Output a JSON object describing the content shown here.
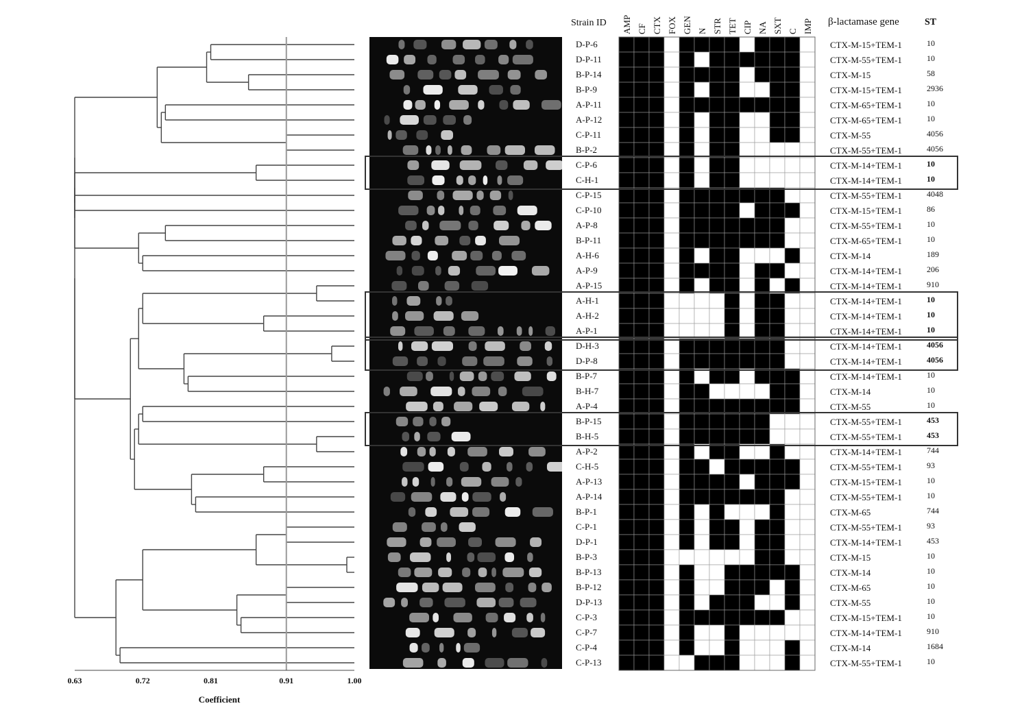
{
  "headers": {
    "strain": "Strain ID",
    "antibiotics": [
      "AMP",
      "CF",
      "CTX",
      "FOX",
      "GEN",
      "N",
      "STR",
      "TET",
      "CIP",
      "NA",
      "SXT",
      "C",
      "IMP"
    ],
    "gene": "β-lactamase gene",
    "st": "ST"
  },
  "axis": {
    "title": "Coefficient",
    "ticks": [
      "0.63",
      "0.72",
      "0.81",
      "0.91",
      "1.00"
    ],
    "tick_values": [
      0.63,
      0.72,
      0.81,
      0.91,
      1.0
    ],
    "range": [
      0.63,
      1.0
    ],
    "cutoff": 0.91
  },
  "strains": [
    {
      "id": "D-P-6",
      "res": "1110111101110",
      "gene": "CTX-M-15+TEM-1",
      "st": "10",
      "bold": false
    },
    {
      "id": "D-P-11",
      "res": "1110101111110",
      "gene": "CTX-M-55+TEM-1",
      "st": "10",
      "bold": false
    },
    {
      "id": "B-P-14",
      "res": "1110111101110",
      "gene": "CTX-M-15",
      "st": "58",
      "bold": false
    },
    {
      "id": "B-P-9",
      "res": "1110101100110",
      "gene": "CTX-M-15+TEM-1",
      "st": "2936",
      "bold": false
    },
    {
      "id": "A-P-11",
      "res": "1110111111110",
      "gene": "CTX-M-65+TEM-1",
      "st": "10",
      "bold": false
    },
    {
      "id": "A-P-12",
      "res": "1110101100110",
      "gene": "CTX-M-65+TEM-1",
      "st": "10",
      "bold": false
    },
    {
      "id": "C-P-11",
      "res": "1110101100110",
      "gene": "CTX-M-55",
      "st": "4056",
      "bold": false
    },
    {
      "id": "B-P-2",
      "res": "1110101100000",
      "gene": "CTX-M-55+TEM-1",
      "st": "4056",
      "bold": false
    },
    {
      "id": "C-P-6",
      "res": "1110101100000",
      "gene": "CTX-M-14+TEM-1",
      "st": "10",
      "bold": true
    },
    {
      "id": "C-H-1",
      "res": "1110101100000",
      "gene": "CTX-M-14+TEM-1",
      "st": "10",
      "bold": true
    },
    {
      "id": "C-P-15",
      "res": "1110111111100",
      "gene": "CTX-M-55+TEM-1",
      "st": "4048",
      "bold": false
    },
    {
      "id": "C-P-10",
      "res": "1110111101110",
      "gene": "CTX-M-15+TEM-1",
      "st": "86",
      "bold": false
    },
    {
      "id": "A-P-8",
      "res": "1110111111100",
      "gene": "CTX-M-55+TEM-1",
      "st": "10",
      "bold": false
    },
    {
      "id": "B-P-11",
      "res": "1110111111100",
      "gene": "CTX-M-65+TEM-1",
      "st": "10",
      "bold": false
    },
    {
      "id": "A-H-6",
      "res": "1110101100010",
      "gene": "CTX-M-14",
      "st": "189",
      "bold": false
    },
    {
      "id": "A-P-9",
      "res": "1110111101100",
      "gene": "CTX-M-14+TEM-1",
      "st": "206",
      "bold": false
    },
    {
      "id": "A-P-15",
      "res": "1110101101010",
      "gene": "CTX-M-14+TEM-1",
      "st": "910",
      "bold": false
    },
    {
      "id": "A-H-1",
      "res": "1110000101100",
      "gene": "CTX-M-14+TEM-1",
      "st": "10",
      "bold": true
    },
    {
      "id": "A-H-2",
      "res": "1110000101100",
      "gene": "CTX-M-14+TEM-1",
      "st": "10",
      "bold": true
    },
    {
      "id": "A-P-1",
      "res": "1110000101100",
      "gene": "CTX-M-14+TEM-1",
      "st": "10",
      "bold": true
    },
    {
      "id": "D-H-3",
      "res": "1110111111100",
      "gene": "CTX-M-14+TEM-1",
      "st": "4056",
      "bold": true
    },
    {
      "id": "D-P-8",
      "res": "1110111111100",
      "gene": "CTX-M-14+TEM-1",
      "st": "4056",
      "bold": true
    },
    {
      "id": "B-P-7",
      "res": "1110101101110",
      "gene": "CTX-M-14+TEM-1",
      "st": "10",
      "bold": false
    },
    {
      "id": "B-H-7",
      "res": "1110110000110",
      "gene": "CTX-M-14",
      "st": "10",
      "bold": false
    },
    {
      "id": "A-P-4",
      "res": "1110111111110",
      "gene": "CTX-M-55",
      "st": "10",
      "bold": false
    },
    {
      "id": "B-P-15",
      "res": "1110111111000",
      "gene": "CTX-M-55+TEM-1",
      "st": "453",
      "bold": true
    },
    {
      "id": "B-H-5",
      "res": "1110111111000",
      "gene": "CTX-M-55+TEM-1",
      "st": "453",
      "bold": true
    },
    {
      "id": "A-P-2",
      "res": "1110101100100",
      "gene": "CTX-M-14+TEM-1",
      "st": "744",
      "bold": false
    },
    {
      "id": "C-H-5",
      "res": "1110110111110",
      "gene": "CTX-M-55+TEM-1",
      "st": "93",
      "bold": false
    },
    {
      "id": "A-P-13",
      "res": "1110111101110",
      "gene": "CTX-M-15+TEM-1",
      "st": "10",
      "bold": false
    },
    {
      "id": "A-P-14",
      "res": "1110111111100",
      "gene": "CTX-M-55+TEM-1",
      "st": "10",
      "bold": false
    },
    {
      "id": "B-P-1",
      "res": "1110101000100",
      "gene": "CTX-M-65",
      "st": "744",
      "bold": false
    },
    {
      "id": "C-P-1",
      "res": "1110101101100",
      "gene": "CTX-M-55+TEM-1",
      "st": "93",
      "bold": false
    },
    {
      "id": "D-P-1",
      "res": "1110101101100",
      "gene": "CTX-M-14+TEM-1",
      "st": "453",
      "bold": false
    },
    {
      "id": "B-P-3",
      "res": "1110000001100",
      "gene": "CTX-M-15",
      "st": "10",
      "bold": false
    },
    {
      "id": "B-P-13",
      "res": "1110100111110",
      "gene": "CTX-M-14",
      "st": "10",
      "bold": false
    },
    {
      "id": "B-P-12",
      "res": "1110100111010",
      "gene": "CTX-M-65",
      "st": "10",
      "bold": false
    },
    {
      "id": "D-P-13",
      "res": "1110101110010",
      "gene": "CTX-M-55",
      "st": "10",
      "bold": false
    },
    {
      "id": "C-P-3",
      "res": "1110111111100",
      "gene": "CTX-M-15+TEM-1",
      "st": "10",
      "bold": false
    },
    {
      "id": "C-P-7",
      "res": "1110100100000",
      "gene": "CTX-M-14+TEM-1",
      "st": "910",
      "bold": false
    },
    {
      "id": "C-P-4",
      "res": "1110100100010",
      "gene": "CTX-M-14",
      "st": "1684",
      "bold": false
    },
    {
      "id": "C-P-13",
      "res": "1110011100010",
      "gene": "CTX-M-55+TEM-1",
      "st": "10",
      "bold": false
    }
  ],
  "dendrogram": [
    [
      0.81,
      0.84
    ],
    [
      0.86,
      0.82
    ],
    [
      0.75,
      0.79
    ],
    [
      0.91,
      0.74
    ],
    [
      0.87,
      0.92
    ],
    [
      0.63,
      0.7
    ],
    [
      0.75,
      0.66
    ],
    [
      0.72,
      0.75
    ],
    [
      0.95,
      0.97
    ],
    [
      0.88,
      0.81
    ],
    [
      0.97,
      0.93
    ],
    [
      0.78,
      0.8
    ],
    [
      0.72,
      0.82
    ],
    [
      0.95,
      0.99
    ],
    [
      0.88,
      0.84
    ],
    [
      0.79,
      0.87
    ],
    [
      0.91,
      0.93
    ],
    [
      0.99,
      0.98
    ],
    [
      0.91,
      0.96
    ],
    [
      0.85,
      0.77
    ],
    [
      0.69,
      0.71
    ],
    [
      0.64,
      0.98
    ],
    [
      0.78,
      0.95
    ],
    [
      0.98,
      0.76
    ],
    [
      0.94,
      0.8
    ],
    [
      0.86,
      0.72
    ],
    [
      0.92,
      0.99
    ],
    [
      0.97,
      0.84
    ],
    [
      0.87,
      0.88
    ],
    [
      0.85,
      0.87
    ],
    [
      0.95,
      0.85
    ],
    [
      0.83,
      0.97
    ],
    [
      0.89,
      0.97
    ],
    [
      0.99,
      0.74
    ],
    [
      0.81,
      0.95
    ],
    [
      0.79,
      0.72
    ],
    [
      0.88,
      0.81
    ],
    [
      0.8,
      0.82
    ],
    [
      0.78,
      0.93
    ],
    [
      0.85,
      0.75
    ],
    [
      0.81,
      0.99
    ],
    [
      0.89,
      0.95
    ]
  ],
  "boxes": [
    [
      8,
      9
    ],
    [
      17,
      19
    ],
    [
      20,
      21
    ],
    [
      25,
      26
    ]
  ],
  "colors": {
    "cell_on": "#000000",
    "cell_off": "#ffffff",
    "grid": "#9a9a9a",
    "tree": "#444444",
    "gel": "#0b0b0b",
    "cutoff": "#999999",
    "box": "#333333"
  }
}
